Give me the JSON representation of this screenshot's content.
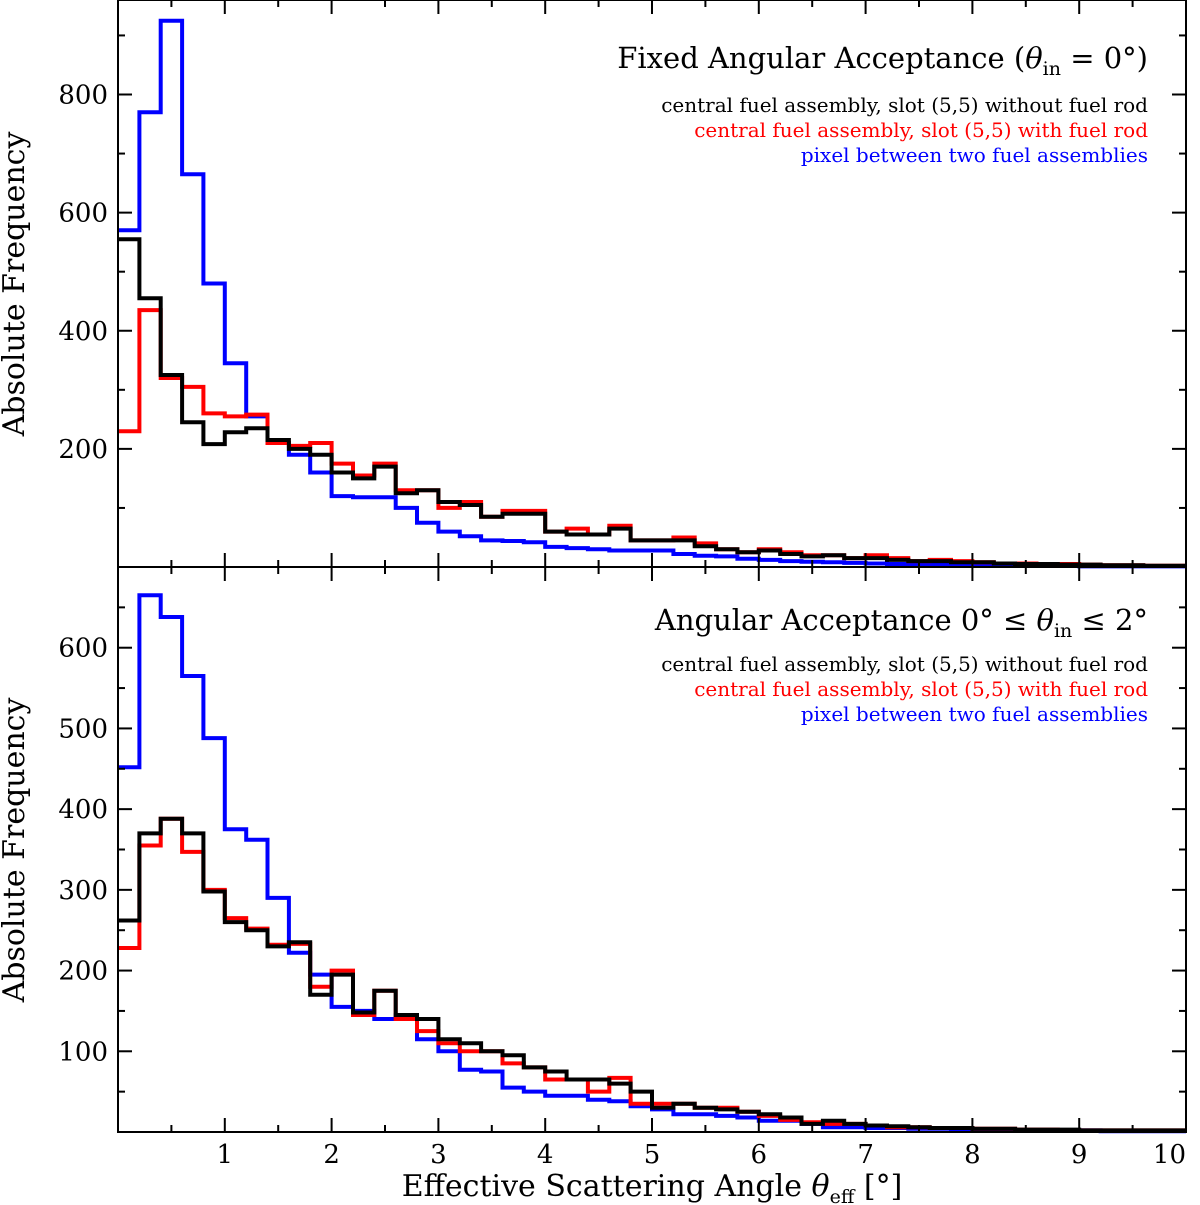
{
  "figure": {
    "xlabel": "Effective Scattering Angle θeff [°]",
    "xlabel_main": "Effective Scattering Angle ",
    "xlabel_sym": "θ",
    "xlabel_sub": "eff",
    "xlabel_unit": " [°]"
  },
  "colors": {
    "without_rod": "#000000",
    "with_rod": "#ff0000",
    "between": "#0000ff"
  },
  "chart_data": [
    {
      "type": "histogram",
      "title": "Fixed Angular Acceptance (θin = 0°)",
      "title_main": "Fixed Angular Acceptance (",
      "title_sym": "θ",
      "title_sub": "in",
      "title_tail": " = 0°)",
      "ylabel": "Absolute Frequency",
      "xlim": [
        0,
        10
      ],
      "ylim": [
        0,
        960
      ],
      "xticks": [
        1,
        2,
        3,
        4,
        5,
        6,
        7,
        8,
        9
      ],
      "yticks": [
        200,
        400,
        600,
        800
      ],
      "bin_width": 0.2,
      "legend_position": "top-right",
      "series": [
        {
          "name": "pixel between two fuel assemblies",
          "values": [
            570,
            770,
            925,
            665,
            480,
            345,
            255,
            210,
            190,
            160,
            120,
            118,
            118,
            100,
            75,
            60,
            52,
            45,
            44,
            42,
            34,
            32,
            30,
            28,
            28,
            28,
            22,
            19,
            18,
            14,
            12,
            10,
            9,
            8,
            7,
            6,
            5,
            4,
            4,
            3,
            3,
            2,
            2,
            2,
            2,
            1,
            1,
            1,
            1,
            1
          ]
        },
        {
          "name": "central fuel assembly, slot (5,5) with fuel rod",
          "values": [
            230,
            435,
            320,
            305,
            260,
            255,
            258,
            210,
            205,
            210,
            175,
            155,
            175,
            130,
            130,
            100,
            110,
            85,
            95,
            95,
            60,
            65,
            55,
            70,
            45,
            45,
            50,
            40,
            30,
            25,
            30,
            25,
            20,
            20,
            15,
            20,
            15,
            10,
            12,
            10,
            8,
            6,
            6,
            5,
            5,
            4,
            3,
            3,
            2,
            2
          ]
        },
        {
          "name": "central fuel assembly, slot (5,5) without fuel rod",
          "values": [
            555,
            455,
            325,
            245,
            208,
            228,
            235,
            215,
            200,
            190,
            160,
            150,
            170,
            125,
            130,
            110,
            105,
            85,
            90,
            90,
            60,
            55,
            55,
            65,
            45,
            45,
            45,
            35,
            30,
            25,
            28,
            22,
            18,
            20,
            15,
            15,
            12,
            10,
            10,
            8,
            8,
            6,
            5,
            5,
            4,
            4,
            3,
            3,
            2,
            2
          ]
        }
      ]
    },
    {
      "type": "histogram",
      "title": "Angular Acceptance 0° ≤ θin ≤ 2°",
      "title_main": "Angular Acceptance 0° ≤ ",
      "title_sym": "θ",
      "title_sub": "in",
      "title_tail": " ≤ 2°",
      "ylabel": "Absolute Frequency",
      "xlim": [
        0,
        10
      ],
      "ylim": [
        0,
        700
      ],
      "xticks": [
        1,
        2,
        3,
        4,
        5,
        6,
        7,
        8,
        9,
        10
      ],
      "yticks": [
        100,
        200,
        300,
        400,
        500,
        600
      ],
      "bin_width": 0.2,
      "legend_position": "top-right",
      "series": [
        {
          "name": "pixel between two fuel assemblies",
          "values": [
            452,
            665,
            638,
            565,
            488,
            375,
            362,
            290,
            222,
            195,
            155,
            150,
            140,
            145,
            115,
            100,
            77,
            75,
            55,
            50,
            45,
            45,
            40,
            38,
            32,
            28,
            22,
            22,
            20,
            18,
            14,
            14,
            10,
            6,
            6,
            5,
            5,
            4,
            4,
            3,
            3,
            3,
            2,
            2,
            2,
            2,
            1,
            1,
            1,
            1
          ]
        },
        {
          "name": "central fuel assembly, slot (5,5) with fuel rod",
          "values": [
            228,
            355,
            388,
            347,
            300,
            265,
            252,
            232,
            233,
            180,
            200,
            145,
            175,
            140,
            125,
            110,
            100,
            100,
            85,
            80,
            65,
            65,
            50,
            67,
            35,
            35,
            35,
            30,
            30,
            25,
            20,
            15,
            12,
            10,
            10,
            8,
            6,
            6,
            5,
            5,
            4,
            4,
            3,
            3,
            2,
            2,
            2,
            2,
            2,
            2
          ]
        },
        {
          "name": "central fuel assembly, slot (5,5) without fuel rod",
          "values": [
            262,
            370,
            388,
            370,
            298,
            260,
            250,
            230,
            235,
            170,
            195,
            148,
            175,
            145,
            140,
            115,
            110,
            100,
            95,
            80,
            75,
            65,
            65,
            60,
            50,
            30,
            35,
            30,
            28,
            25,
            22,
            18,
            10,
            14,
            10,
            8,
            7,
            6,
            5,
            5,
            4,
            4,
            3,
            3,
            3,
            2,
            2,
            2,
            2,
            2
          ]
        }
      ]
    }
  ]
}
